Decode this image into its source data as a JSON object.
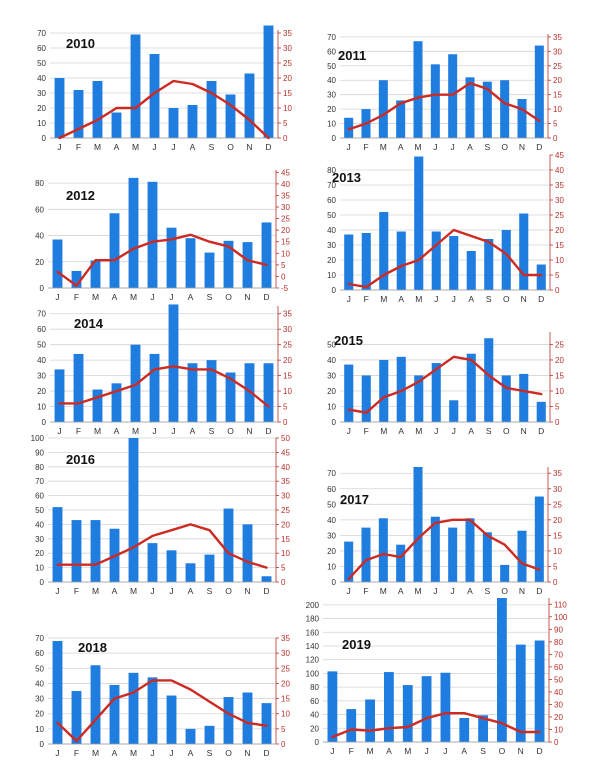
{
  "colors": {
    "bar": "#1f7de0",
    "line": "#cc2a22",
    "grid": "#d4d4d4",
    "left_axis_text": "#333333",
    "right_axis_text": "#b8302a",
    "right_axis_line": "#b8302a"
  },
  "chart_data": [
    {
      "type": "bar",
      "title": "2010",
      "categories": [
        "J",
        "F",
        "M",
        "A",
        "M",
        "J",
        "J",
        "A",
        "S",
        "O",
        "N",
        "D"
      ],
      "left_ticks": [
        "0",
        "10",
        "20",
        "30",
        "40",
        "50",
        "60",
        "70"
      ],
      "right_ticks": [
        "0",
        "5",
        "10",
        "15",
        "20",
        "25",
        "30",
        "35"
      ],
      "ylim": [
        0,
        72
      ],
      "y2lim": [
        0,
        36
      ],
      "series": [
        {
          "axis": "left",
          "values": [
            40,
            32,
            38,
            17,
            69,
            56,
            20,
            22,
            38,
            29,
            43,
            75
          ]
        },
        {
          "axis": "right",
          "values": [
            0,
            3,
            6,
            10,
            10,
            15,
            19,
            18,
            15,
            11,
            6,
            0
          ]
        }
      ]
    },
    {
      "type": "bar",
      "title": "2011",
      "categories": [
        "J",
        "F",
        "M",
        "A",
        "M",
        "J",
        "J",
        "A",
        "S",
        "O",
        "N",
        "D"
      ],
      "left_ticks": [
        "0",
        "10",
        "20",
        "30",
        "40",
        "50",
        "60",
        "70"
      ],
      "right_ticks": [
        "0",
        "5",
        "10",
        "15",
        "20",
        "25",
        "30",
        "35"
      ],
      "ylim": [
        0,
        72
      ],
      "y2lim": [
        0,
        36
      ],
      "series": [
        {
          "axis": "left",
          "values": [
            14,
            20,
            40,
            26,
            67,
            51,
            58,
            42,
            39,
            40,
            27,
            64
          ]
        },
        {
          "axis": "right",
          "values": [
            3,
            5,
            8,
            12,
            14,
            15,
            15,
            19,
            17,
            12,
            10,
            6
          ]
        }
      ]
    },
    {
      "type": "bar",
      "title": "2012",
      "categories": [
        "J",
        "F",
        "M",
        "A",
        "M",
        "J",
        "J",
        "A",
        "S",
        "O",
        "N",
        "D"
      ],
      "left_ticks": [
        "0",
        "20",
        "40",
        "60",
        "80"
      ],
      "right_ticks": [
        "-5",
        "0",
        "5",
        "10",
        "15",
        "20",
        "25",
        "30",
        "35",
        "40",
        "45"
      ],
      "ylim": [
        0,
        90
      ],
      "y2lim": [
        -5,
        46
      ],
      "series": [
        {
          "axis": "left",
          "values": [
            37,
            13,
            21,
            57,
            84,
            81,
            46,
            38,
            27,
            36,
            35,
            50
          ]
        },
        {
          "axis": "right",
          "values": [
            2,
            -4,
            7,
            7,
            12,
            15,
            16,
            18,
            15,
            13,
            7,
            5
          ]
        }
      ]
    },
    {
      "type": "bar",
      "title": "2013",
      "categories": [
        "J",
        "F",
        "M",
        "A",
        "M",
        "J",
        "J",
        "A",
        "S",
        "O",
        "N",
        "D"
      ],
      "left_ticks": [
        "0",
        "10",
        "20",
        "30",
        "40",
        "50",
        "60",
        "70",
        "80"
      ],
      "right_ticks": [
        "0",
        "5",
        "10",
        "15",
        "20",
        "25",
        "30",
        "35",
        "40",
        "45"
      ],
      "ylim": [
        0,
        90
      ],
      "y2lim": [
        0,
        45
      ],
      "series": [
        {
          "axis": "left",
          "values": [
            37,
            38,
            52,
            39,
            89,
            39,
            36,
            26,
            34,
            40,
            51,
            17
          ]
        },
        {
          "axis": "right",
          "values": [
            2,
            1,
            5,
            8,
            10,
            15,
            20,
            18,
            16,
            12,
            5,
            5
          ]
        }
      ]
    },
    {
      "type": "bar",
      "title": "2014",
      "categories": [
        "J",
        "F",
        "M",
        "A",
        "M",
        "J",
        "J",
        "A",
        "S",
        "O",
        "N",
        "D"
      ],
      "left_ticks": [
        "0",
        "10",
        "20",
        "30",
        "40",
        "50",
        "60",
        "70"
      ],
      "right_ticks": [
        "0",
        "5",
        "10",
        "15",
        "20",
        "25",
        "30",
        "35"
      ],
      "ylim": [
        0,
        75
      ],
      "y2lim": [
        0,
        37.5
      ],
      "series": [
        {
          "axis": "left",
          "values": [
            34,
            44,
            21,
            25,
            50,
            44,
            76,
            38,
            40,
            32,
            38,
            38
          ]
        },
        {
          "axis": "right",
          "values": [
            6,
            6,
            8,
            10,
            12,
            17,
            18,
            17,
            17,
            14,
            10,
            5
          ]
        }
      ]
    },
    {
      "type": "bar",
      "title": "2015",
      "categories": [
        "J",
        "F",
        "M",
        "A",
        "M",
        "J",
        "J",
        "A",
        "S",
        "O",
        "N",
        "D"
      ],
      "left_ticks": [
        "0",
        "10",
        "20",
        "30",
        "40",
        "50"
      ],
      "right_ticks": [
        "0",
        "5",
        "10",
        "15",
        "20",
        "25"
      ],
      "ylim": [
        0,
        58
      ],
      "y2lim": [
        0,
        29
      ],
      "series": [
        {
          "axis": "left",
          "values": [
            37,
            30,
            40,
            42,
            30,
            38,
            14,
            44,
            54,
            30,
            31,
            13
          ]
        },
        {
          "axis": "right",
          "values": [
            4,
            3,
            8,
            10,
            13,
            17,
            21,
            20,
            15,
            11,
            10,
            9
          ]
        }
      ]
    },
    {
      "type": "bar",
      "title": "2016",
      "categories": [
        "J",
        "F",
        "M",
        "A",
        "M",
        "J",
        "J",
        "A",
        "S",
        "O",
        "N",
        "D"
      ],
      "left_ticks": [
        "0",
        "10",
        "20",
        "30",
        "40",
        "50",
        "60",
        "70",
        "80",
        "90",
        "100"
      ],
      "right_ticks": [
        "0",
        "5",
        "10",
        "15",
        "20",
        "25",
        "30",
        "35",
        "40",
        "45",
        "50"
      ],
      "ylim": [
        0,
        100
      ],
      "y2lim": [
        0,
        50
      ],
      "series": [
        {
          "axis": "left",
          "values": [
            52,
            43,
            43,
            37,
            100,
            27,
            22,
            13,
            19,
            51,
            40,
            4
          ]
        },
        {
          "axis": "right",
          "values": [
            6,
            6,
            6,
            9,
            12,
            16,
            18,
            20,
            18,
            10,
            7,
            5
          ]
        }
      ]
    },
    {
      "type": "bar",
      "title": "2017",
      "categories": [
        "J",
        "F",
        "M",
        "A",
        "M",
        "J",
        "J",
        "A",
        "S",
        "O",
        "N",
        "D"
      ],
      "left_ticks": [
        "0",
        "10",
        "20",
        "30",
        "40",
        "50",
        "60",
        "70"
      ],
      "right_ticks": [
        "0",
        "5",
        "10",
        "15",
        "20",
        "25",
        "30",
        "35"
      ],
      "ylim": [
        0,
        74
      ],
      "y2lim": [
        0,
        37
      ],
      "series": [
        {
          "axis": "left",
          "values": [
            26,
            35,
            41,
            24,
            74,
            42,
            35,
            41,
            32,
            11,
            33,
            55
          ]
        },
        {
          "axis": "right",
          "values": [
            1,
            7,
            9,
            8,
            14,
            19,
            20,
            20,
            15,
            12,
            6,
            4
          ]
        }
      ]
    },
    {
      "type": "bar",
      "title": "2018",
      "categories": [
        "J",
        "F",
        "M",
        "A",
        "M",
        "J",
        "J",
        "A",
        "S",
        "O",
        "N",
        "D"
      ],
      "left_ticks": [
        "0",
        "10",
        "20",
        "30",
        "40",
        "50",
        "60",
        "70"
      ],
      "right_ticks": [
        "0",
        "5",
        "10",
        "15",
        "20",
        "25",
        "30",
        "35"
      ],
      "ylim": [
        0,
        70
      ],
      "y2lim": [
        0,
        35
      ],
      "series": [
        {
          "axis": "left",
          "values": [
            68,
            35,
            52,
            39,
            47,
            44,
            32,
            10,
            12,
            31,
            34,
            27
          ]
        },
        {
          "axis": "right",
          "values": [
            7,
            1,
            8,
            15,
            17,
            21,
            21,
            18,
            14,
            10,
            7,
            6
          ]
        }
      ]
    },
    {
      "type": "bar",
      "title": "2019",
      "categories": [
        "J",
        "F",
        "M",
        "A",
        "M",
        "J",
        "J",
        "A",
        "S",
        "O",
        "N",
        "D"
      ],
      "left_ticks": [
        "0",
        "20",
        "40",
        "60",
        "80",
        "100",
        "120",
        "140",
        "160",
        "180",
        "200"
      ],
      "right_ticks": [
        "0",
        "10",
        "20",
        "30",
        "40",
        "50",
        "60",
        "70",
        "80",
        "90",
        "100",
        "110"
      ],
      "ylim": [
        0,
        210
      ],
      "y2lim": [
        0,
        115
      ],
      "series": [
        {
          "axis": "left",
          "values": [
            103,
            48,
            62,
            102,
            83,
            96,
            101,
            35,
            39,
            210,
            142,
            148
          ]
        },
        {
          "axis": "right",
          "values": [
            4,
            10,
            9,
            11,
            12,
            19,
            23,
            23,
            19,
            15,
            8,
            8
          ]
        }
      ]
    }
  ]
}
